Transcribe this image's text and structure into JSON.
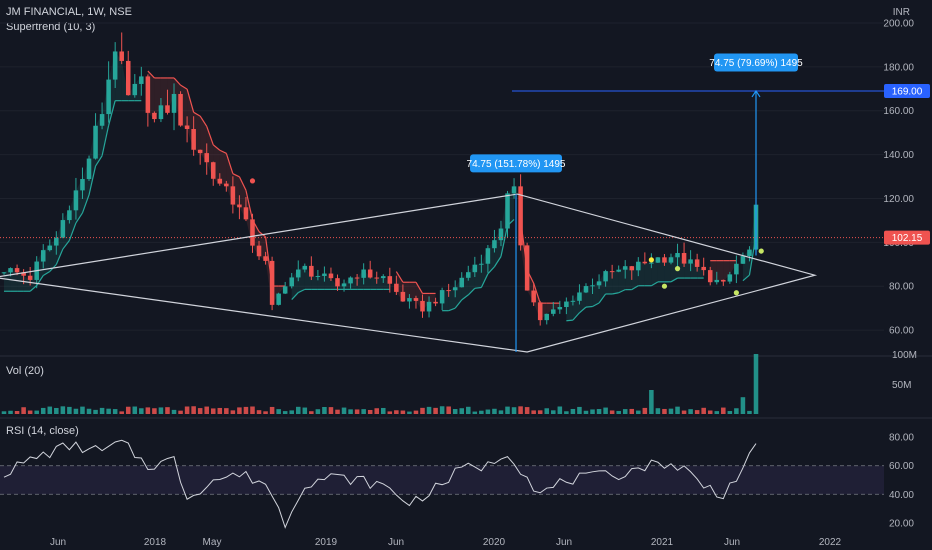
{
  "header": {
    "title": "JM FINANCIAL, 1W, NSE",
    "supertrend": "Supertrend (10, 3)",
    "volume": "Vol (20)",
    "rsi": "RSI (14, close)",
    "currency": "INR"
  },
  "colors": {
    "background": "#131722",
    "up": "#26a69a",
    "down": "#ef5350",
    "accent": "#2962ff",
    "rsi_line": "#d1d4dc",
    "pattern": "#d1d4dc"
  },
  "chart_data": {
    "type": "candlestick",
    "x_ticks": [
      "Jun",
      "2018",
      "May",
      "2019",
      "Jun",
      "2020",
      "Jun",
      "2021",
      "Jun",
      "2022"
    ],
    "price_axis": {
      "ylim": [
        50,
        205
      ],
      "ticks": [
        "60.00",
        "80.00",
        "100.00",
        "120.00",
        "140.00",
        "160.00",
        "180.00",
        "200.00"
      ]
    },
    "last_price": "102.15",
    "target_price": "169.00",
    "measure_1": "74.75 (151.78%) 1495",
    "measure_2": "74.75 (79.69%) 1495",
    "price_path": [
      [
        0,
        88
      ],
      [
        4,
        84
      ],
      [
        6,
        95
      ],
      [
        8,
        102
      ],
      [
        10,
        118
      ],
      [
        12,
        128
      ],
      [
        14,
        150
      ],
      [
        15,
        160
      ],
      [
        17,
        190
      ],
      [
        19,
        165
      ],
      [
        21,
        172
      ],
      [
        23,
        155
      ],
      [
        26,
        165
      ],
      [
        28,
        148
      ],
      [
        30,
        142
      ],
      [
        32,
        130
      ],
      [
        34,
        125
      ],
      [
        36,
        115
      ],
      [
        38,
        100
      ],
      [
        40,
        90
      ],
      [
        41,
        70
      ],
      [
        43,
        82
      ],
      [
        46,
        88
      ],
      [
        48,
        85
      ],
      [
        51,
        80
      ],
      [
        54,
        86
      ],
      [
        58,
        84
      ],
      [
        61,
        74
      ],
      [
        64,
        70
      ],
      [
        66,
        74
      ],
      [
        69,
        80
      ],
      [
        72,
        90
      ],
      [
        74,
        96
      ],
      [
        76,
        108
      ],
      [
        77,
        120
      ],
      [
        78,
        122
      ],
      [
        79,
        100
      ],
      [
        80,
        80
      ],
      [
        82,
        65
      ],
      [
        85,
        70
      ],
      [
        87,
        75
      ],
      [
        90,
        82
      ],
      [
        93,
        86
      ],
      [
        96,
        88
      ],
      [
        99,
        92
      ],
      [
        102,
        94
      ],
      [
        104,
        92
      ],
      [
        107,
        86
      ],
      [
        110,
        80
      ],
      [
        112,
        90
      ],
      [
        114,
        96
      ],
      [
        115,
        114
      ],
      [
        115.6,
        102.15
      ]
    ],
    "volume": {
      "ticks": [
        "50M",
        "100M"
      ],
      "spikes": [
        {
          "t": 99,
          "v": 40
        },
        {
          "t": 113,
          "v": 28
        },
        {
          "t": 115.4,
          "v": 100
        }
      ]
    },
    "rsi": {
      "ylim": [
        15,
        85
      ],
      "ticks": [
        "20.00",
        "40.00",
        "60.00",
        "80.00"
      ],
      "band": [
        40,
        60
      ],
      "path": [
        [
          0,
          55
        ],
        [
          5,
          66
        ],
        [
          10,
          74
        ],
        [
          15,
          70
        ],
        [
          18,
          76
        ],
        [
          22,
          60
        ],
        [
          26,
          64
        ],
        [
          28,
          38
        ],
        [
          32,
          50
        ],
        [
          36,
          54
        ],
        [
          40,
          48
        ],
        [
          43,
          20
        ],
        [
          46,
          48
        ],
        [
          50,
          52
        ],
        [
          54,
          50
        ],
        [
          58,
          46
        ],
        [
          62,
          34
        ],
        [
          66,
          44
        ],
        [
          70,
          58
        ],
        [
          74,
          60
        ],
        [
          77,
          70
        ],
        [
          79,
          58
        ],
        [
          82,
          40
        ],
        [
          86,
          50
        ],
        [
          90,
          52
        ],
        [
          94,
          54
        ],
        [
          98,
          60
        ],
        [
          101,
          62
        ],
        [
          104,
          58
        ],
        [
          107,
          46
        ],
        [
          110,
          40
        ],
        [
          113,
          58
        ],
        [
          115,
          72
        ],
        [
          115.6,
          60
        ]
      ]
    }
  }
}
